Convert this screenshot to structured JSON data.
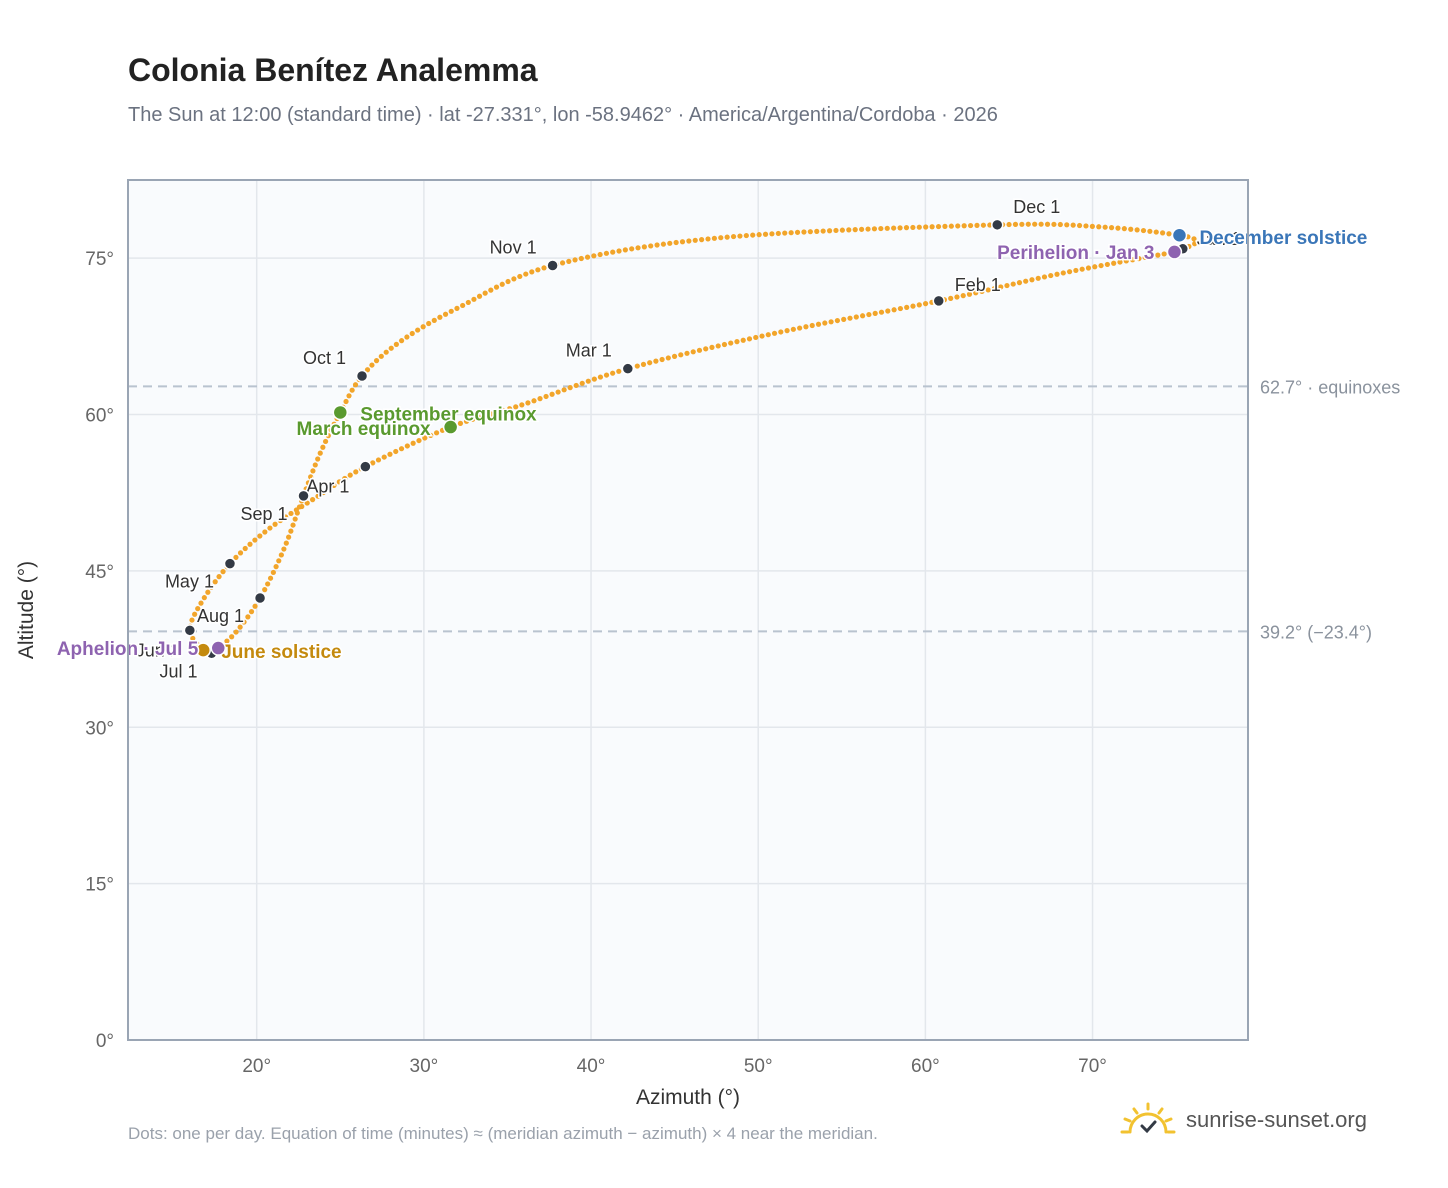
{
  "title": "Colonia Benítez Analemma",
  "subtitle": "The Sun at 12:00 (standard time) · lat -27.331°, lon -58.9462° · America/Argentina/Cordoba · 2026",
  "footnote": "Dots: one per day. Equation of time (minutes) ≈ (meridian azimuth − azimuth) × 4 near the meridian.",
  "brand": {
    "text": "sunrise-sunset.org",
    "icon": "sun-logo-icon"
  },
  "colors": {
    "curve": "#f2a52a",
    "month_marker": "#333a45",
    "equinox": "#5a9a2f",
    "june_solstice": "#c48a0e",
    "december_solstice": "#3a76b8",
    "apsis": "#8e63b0",
    "plot_bg": "#f9fbfd",
    "grid": "#e3e7ec",
    "reference_line": "#b9c3cf"
  },
  "chart_data": {
    "type": "scatter",
    "xlabel": "Azimuth (°)",
    "ylabel": "Altitude (°)",
    "xlim": [
      12.3,
      79.3
    ],
    "ylim": [
      0,
      82.5
    ],
    "xticks": [
      20,
      30,
      40,
      50,
      60,
      70
    ],
    "yticks": [
      0,
      15,
      30,
      45,
      60,
      75
    ],
    "tick_suffix": "°",
    "grid": true,
    "reference_lines": [
      {
        "y": 62.7,
        "label": "62.7° · equinoxes"
      },
      {
        "y": 39.2,
        "label": "39.2° (−23.4°)"
      }
    ],
    "path_points": [
      {
        "date": "Jan 1",
        "az": 75.4,
        "alt": 75.9
      },
      {
        "date": "Jan 3",
        "az": 74.9,
        "alt": 75.6
      },
      {
        "date": "Jan 16",
        "az": 68.0,
        "alt": 73.5
      },
      {
        "date": "Feb 1",
        "az": 60.8,
        "alt": 70.9
      },
      {
        "date": "Feb 15",
        "az": 51.0,
        "alt": 67.8
      },
      {
        "date": "Mar 1",
        "az": 42.2,
        "alt": 64.4
      },
      {
        "date": "Mar 10",
        "az": 36.0,
        "alt": 61.0
      },
      {
        "date": "Mar 20",
        "az": 31.6,
        "alt": 58.8
      },
      {
        "date": "Apr 1",
        "az": 26.5,
        "alt": 55.0
      },
      {
        "date": "Apr 10",
        "az": 23.5,
        "alt": 52.0
      },
      {
        "date": "Apr 20",
        "az": 20.7,
        "alt": 49.0
      },
      {
        "date": "May 1",
        "az": 18.4,
        "alt": 45.7
      },
      {
        "date": "May 15",
        "az": 16.7,
        "alt": 42.0
      },
      {
        "date": "Jun 1",
        "az": 16.0,
        "alt": 39.3
      },
      {
        "date": "Jun 21",
        "az": 16.8,
        "alt": 37.4
      },
      {
        "date": "Jul 1",
        "az": 17.3,
        "alt": 37.1
      },
      {
        "date": "Jul 5",
        "az": 17.7,
        "alt": 37.6
      },
      {
        "date": "Jul 15",
        "az": 18.8,
        "alt": 39.2
      },
      {
        "date": "Aug 1",
        "az": 20.2,
        "alt": 42.4
      },
      {
        "date": "Aug 15",
        "az": 21.6,
        "alt": 47.0
      },
      {
        "date": "Sep 1",
        "az": 22.8,
        "alt": 52.2
      },
      {
        "date": "Sep 10",
        "az": 23.8,
        "alt": 56.3
      },
      {
        "date": "Sep 22",
        "az": 25.0,
        "alt": 60.2
      },
      {
        "date": "Oct 1",
        "az": 26.3,
        "alt": 63.7
      },
      {
        "date": "Oct 10",
        "az": 28.5,
        "alt": 66.9
      },
      {
        "date": "Oct 20",
        "az": 32.0,
        "alt": 70.2
      },
      {
        "date": "Nov 1",
        "az": 37.7,
        "alt": 74.3
      },
      {
        "date": "Nov 15",
        "az": 48.0,
        "alt": 77.0
      },
      {
        "date": "Dec 1",
        "az": 64.3,
        "alt": 78.2
      },
      {
        "date": "Dec 10",
        "az": 70.5,
        "alt": 78.0
      },
      {
        "date": "Dec 21",
        "az": 75.2,
        "alt": 77.2
      },
      {
        "date": "Dec 27",
        "az": 76.2,
        "alt": 76.6
      },
      {
        "date": "Dec 31",
        "az": 75.6,
        "alt": 76.0
      }
    ],
    "month_markers": [
      {
        "label": "Jan 1",
        "az": 75.4,
        "alt": 75.9,
        "anchor": "start",
        "dx": 14,
        "dy": -4
      },
      {
        "label": "Feb 1",
        "az": 60.8,
        "alt": 70.9,
        "anchor": "start",
        "dx": 16,
        "dy": -10
      },
      {
        "label": "Mar 1",
        "az": 42.2,
        "alt": 64.4,
        "anchor": "end",
        "dx": -16,
        "dy": -12
      },
      {
        "label": "Apr 1",
        "az": 26.5,
        "alt": 55.0,
        "anchor": "end",
        "dx": -16,
        "dy": 26
      },
      {
        "label": "May 1",
        "az": 18.4,
        "alt": 45.7,
        "anchor": "end",
        "dx": -16,
        "dy": 24
      },
      {
        "label": "Jun 1",
        "az": 16.0,
        "alt": 39.3,
        "anchor": "end",
        "dx": -10,
        "dy": 26
      },
      {
        "label": "Jul 1",
        "az": 17.3,
        "alt": 37.1,
        "anchor": "end",
        "dx": -14,
        "dy": 24
      },
      {
        "label": "Aug 1",
        "az": 20.2,
        "alt": 42.4,
        "anchor": "end",
        "dx": -16,
        "dy": 24
      },
      {
        "label": "Sep 1",
        "az": 22.8,
        "alt": 52.2,
        "anchor": "end",
        "dx": -16,
        "dy": 24
      },
      {
        "label": "Oct 1",
        "az": 26.3,
        "alt": 63.7,
        "anchor": "end",
        "dx": -16,
        "dy": -12
      },
      {
        "label": "Nov 1",
        "az": 37.7,
        "alt": 74.3,
        "anchor": "end",
        "dx": -16,
        "dy": -12
      },
      {
        "label": "Dec 1",
        "az": 64.3,
        "alt": 78.2,
        "anchor": "start",
        "dx": 16,
        "dy": -12
      }
    ],
    "special_points": [
      {
        "label": "December solstice",
        "az": 75.2,
        "alt": 77.2,
        "color": "#3a76b8",
        "anchor": "start",
        "dx": 20,
        "dy": 9
      },
      {
        "label": "Perihelion · Jan 3",
        "az": 74.9,
        "alt": 75.6,
        "color": "#8e63b0",
        "anchor": "end",
        "dx": -20,
        "dy": 7
      },
      {
        "label": "September equinox",
        "az": 25.0,
        "alt": 60.2,
        "color": "#5a9a2f",
        "anchor": "start",
        "dx": 20,
        "dy": 8
      },
      {
        "label": "March equinox",
        "az": 31.6,
        "alt": 58.8,
        "color": "#5a9a2f",
        "anchor": "end",
        "dx": -20,
        "dy": 8
      },
      {
        "label": "June solstice",
        "az": 16.8,
        "alt": 37.4,
        "color": "#c48a0e",
        "anchor": "start",
        "dx": 18,
        "dy": 8
      },
      {
        "label": "Aphelion · Jul 5",
        "az": 17.7,
        "alt": 37.6,
        "color": "#8e63b0",
        "anchor": "end",
        "dx": -20,
        "dy": 7
      }
    ]
  }
}
